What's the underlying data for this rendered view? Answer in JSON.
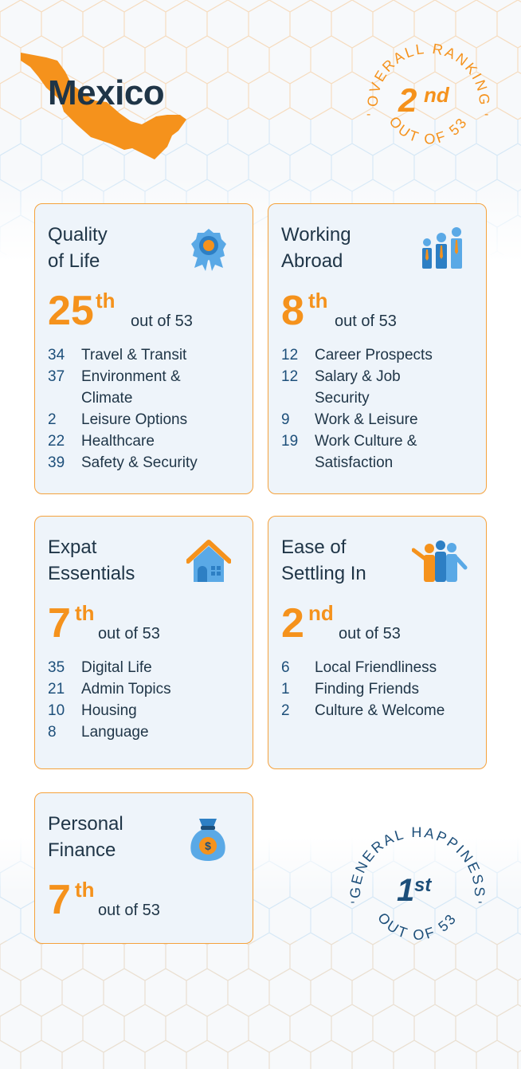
{
  "country": "Mexico",
  "colors": {
    "accent": "#f5921c",
    "text": "#1f3547",
    "card_bg": "#eef4fa",
    "border": "#f5a23c",
    "icon_blue": "#5aa9e6"
  },
  "overall": {
    "arc_text": "OVERALL RANKING",
    "rank": "2",
    "suffix": "nd",
    "bottom_text": "OUT OF 53"
  },
  "happiness": {
    "arc_text": "GENERAL HAPPINESS",
    "rank": "1",
    "suffix": "st",
    "bottom_text": "OUT OF 53"
  },
  "cards": [
    {
      "title1": "Quality",
      "title2": "of Life",
      "icon": "award-ribbon-icon",
      "rank": "25",
      "suffix": "th",
      "of": "out of 53",
      "items": [
        {
          "n": "34",
          "label": "Travel & Transit"
        },
        {
          "n": "37",
          "label": "Environment & Climate"
        },
        {
          "n": "2",
          "label": "Leisure Options"
        },
        {
          "n": "22",
          "label": "Healthcare"
        },
        {
          "n": "39",
          "label": "Safety & Security"
        }
      ]
    },
    {
      "title1": "Working",
      "title2": "Abroad",
      "icon": "team-workers-icon",
      "rank": "8",
      "suffix": "th",
      "of": "out of 53",
      "items": [
        {
          "n": "12",
          "label": "Career Prospects"
        },
        {
          "n": "12",
          "label": "Salary & Job Security"
        },
        {
          "n": "9",
          "label": "Work & Leisure"
        },
        {
          "n": "19",
          "label": "Work Culture & Satisfaction"
        }
      ]
    },
    {
      "title1": "Expat",
      "title2": "Essentials",
      "icon": "house-icon",
      "rank": "7",
      "suffix": "th",
      "of": "out of 53",
      "items": [
        {
          "n": "35",
          "label": "Digital Life"
        },
        {
          "n": "21",
          "label": "Admin Topics"
        },
        {
          "n": "10",
          "label": "Housing"
        },
        {
          "n": "8",
          "label": "Language"
        }
      ]
    },
    {
      "title1": "Ease of",
      "title2": "Settling In",
      "icon": "people-group-icon",
      "rank": "2",
      "suffix": "nd",
      "of": "out of 53",
      "items": [
        {
          "n": "6",
          "label": "Local Friendliness"
        },
        {
          "n": "1",
          "label": "Finding Friends"
        },
        {
          "n": "2",
          "label": "Culture & Welcome"
        }
      ]
    },
    {
      "title1": "Personal",
      "title2": "Finance",
      "icon": "money-bag-icon",
      "rank": "7",
      "suffix": "th",
      "of": "out of 53",
      "items": []
    }
  ]
}
